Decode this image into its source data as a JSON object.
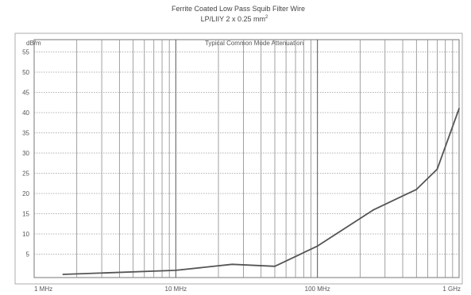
{
  "chart_data": {
    "type": "line",
    "title": "Ferrite Coated Low Pass Squib Filter Wire",
    "subtitle_main": "LP/LIIY 2 x 0.25 mm",
    "subtitle_sup": "2",
    "plot_title": "Typical Common Mode Attenuation",
    "ylabel": "dB/m",
    "x_scale": "log",
    "xlim_mhz": [
      1,
      1000
    ],
    "ylim": [
      0,
      50
    ],
    "y_ticks": [
      5,
      10,
      15,
      20,
      25,
      30,
      35,
      40,
      45,
      50,
      55
    ],
    "x_tick_labels": [
      {
        "value_mhz": 1,
        "label": "1 MHz"
      },
      {
        "value_mhz": 10,
        "label": "10 MHz"
      },
      {
        "value_mhz": 100,
        "label": "100 MHz"
      },
      {
        "value_mhz": 1000,
        "label": "1 GHz"
      }
    ],
    "grid": true,
    "series": [
      {
        "color": "#555555",
        "x": [
          1.6,
          10,
          25,
          50,
          100,
          250,
          500,
          700,
          1000
        ],
        "y": [
          0,
          1,
          2.5,
          2,
          7,
          16,
          21,
          26,
          41
        ]
      }
    ]
  }
}
